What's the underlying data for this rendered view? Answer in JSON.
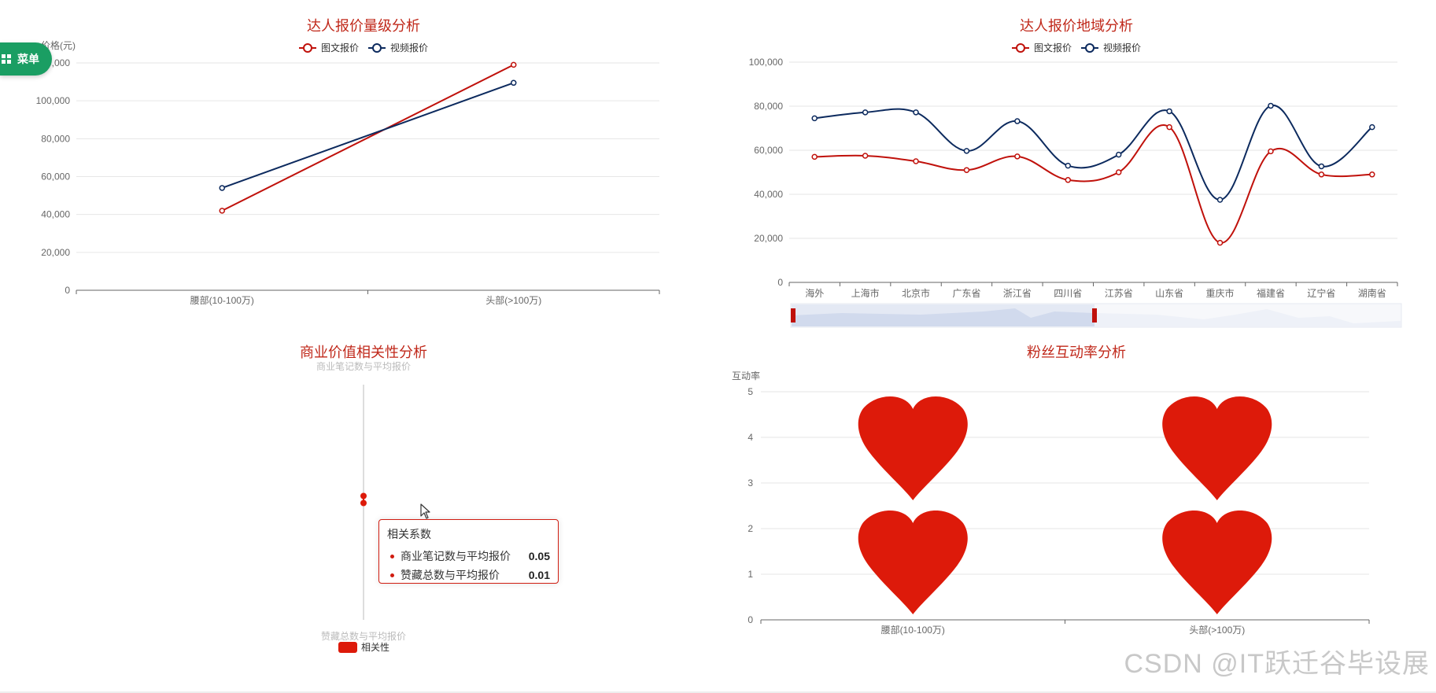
{
  "menu": {
    "label": "菜单"
  },
  "colors": {
    "red": "#c0110b",
    "navy": "#0c2a5e",
    "heart": "#dd1a0a",
    "title": "#c0281a"
  },
  "chart_data": [
    {
      "type": "line",
      "title": "达人报价量级分析",
      "ylabel": "价格(元)",
      "categories": [
        "腰部(10-100万)",
        "头部(>100万)"
      ],
      "ylim": [
        0,
        120000
      ],
      "yticks": [
        "0",
        "20,000",
        "40,000",
        "60,000",
        "80,000",
        "100,000",
        "120,000"
      ],
      "legend_position": "top-center",
      "series": [
        {
          "name": "图文报价",
          "color": "#c0110b",
          "values": [
            42000,
            119000
          ]
        },
        {
          "name": "视频报价",
          "color": "#0c2a5e",
          "values": [
            54000,
            109500
          ]
        }
      ]
    },
    {
      "type": "line",
      "title": "达人报价地域分析",
      "categories": [
        "海外",
        "上海市",
        "北京市",
        "广东省",
        "浙江省",
        "四川省",
        "江苏省",
        "山东省",
        "重庆市",
        "福建省",
        "辽宁省",
        "湖南省"
      ],
      "ylim": [
        0,
        100000
      ],
      "yticks": [
        "0",
        "20,000",
        "40,000",
        "60,000",
        "80,000",
        "100,000"
      ],
      "smooth": true,
      "legend_position": "top-center",
      "dataZoom": "slider",
      "series": [
        {
          "name": "图文报价",
          "color": "#c0110b",
          "values": [
            57000,
            57500,
            55000,
            51000,
            57200,
            46500,
            50000,
            70500,
            18000,
            59500,
            49000,
            49000
          ]
        },
        {
          "name": "视频报价",
          "color": "#0c2a5e",
          "values": [
            74500,
            77200,
            77200,
            59700,
            73200,
            53000,
            58000,
            77700,
            37500,
            80200,
            52700,
            70500
          ]
        }
      ]
    },
    {
      "type": "radar",
      "title": "商业价值相关性分析",
      "indicators": [
        "商业笔记数与平均报价",
        "赞藏总数与平均报价"
      ],
      "legend": [
        "相关性"
      ],
      "values": [
        0.05,
        0.01
      ],
      "tooltip": {
        "title": "相关系数",
        "rows": [
          {
            "name": "商业笔记数与平均报价",
            "value": "0.05"
          },
          {
            "name": "赞藏总数与平均报价",
            "value": "0.01"
          }
        ]
      }
    },
    {
      "type": "bar",
      "title": "粉丝互动率分析",
      "ylabel": "互动率",
      "categories": [
        "腰部(10-100万)",
        "头部(>100万)"
      ],
      "ylim": [
        0,
        5
      ],
      "yticks": [
        "0",
        "1",
        "2",
        "3",
        "4",
        "5"
      ],
      "symbol": "heart",
      "values": [
        5,
        5
      ]
    }
  ],
  "watermark": "CSDN @IT跃迁谷毕设展"
}
